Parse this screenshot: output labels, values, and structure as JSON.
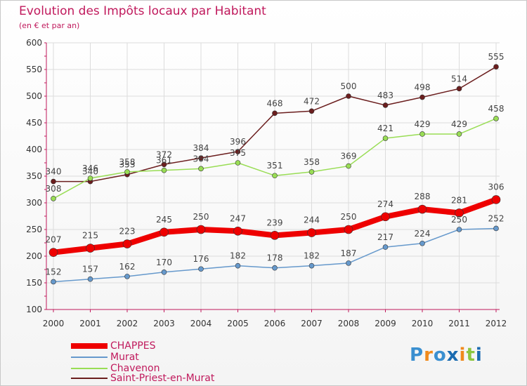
{
  "title": "Evolution des Impôts locaux par Habitant",
  "subtitle": "(en € et par an)",
  "logo": "Proxiti",
  "colors": {
    "title": "#c0195c",
    "axis": "#c0195c"
  },
  "chart_data": {
    "type": "line",
    "x": [
      "2000",
      "2001",
      "2002",
      "2003",
      "2004",
      "2005",
      "2006",
      "2007",
      "2008",
      "2009",
      "2010",
      "2011",
      "2012"
    ],
    "ylim": [
      100,
      600
    ],
    "yticks": [
      100,
      150,
      200,
      250,
      300,
      350,
      400,
      450,
      500,
      550,
      600
    ],
    "grid": true,
    "legend_position": "bottom",
    "series": [
      {
        "name": "CHAPPES",
        "color": "#ee0000",
        "values": [
          207,
          215,
          223,
          245,
          250,
          247,
          239,
          244,
          250,
          274,
          288,
          281,
          306
        ]
      },
      {
        "name": "Murat",
        "color": "#6699cc",
        "values": [
          152,
          157,
          162,
          170,
          176,
          182,
          178,
          182,
          187,
          217,
          224,
          250,
          252
        ]
      },
      {
        "name": "Chavenon",
        "color": "#99dd55",
        "values": [
          308,
          346,
          358,
          361,
          364,
          375,
          351,
          358,
          369,
          421,
          429,
          429,
          458
        ]
      },
      {
        "name": "Saint-Priest-en-Murat",
        "color": "#6b1e1e",
        "values": [
          340,
          340,
          353,
          372,
          384,
          396,
          468,
          472,
          500,
          483,
          498,
          514,
          555
        ]
      }
    ]
  }
}
